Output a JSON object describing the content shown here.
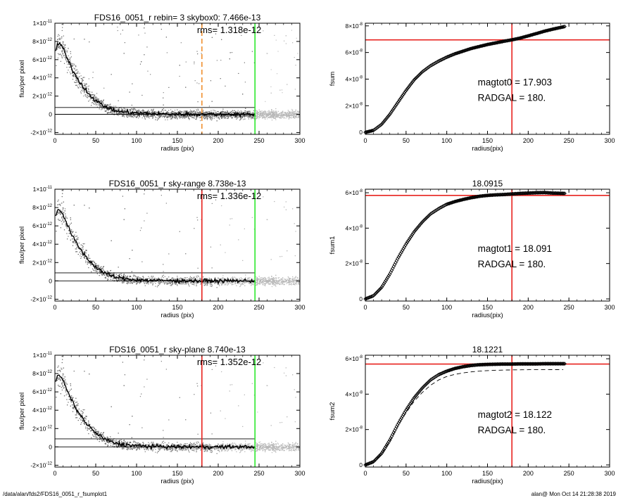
{
  "footer": {
    "path": "/data/alan/fds2/FDS16_0051_r_fsumplot1",
    "stamp": "alan@  Mon Oct 14 21:28:38 2019"
  },
  "colors": {
    "red": "#e8231f",
    "green": "#2ee82e",
    "orange": "#f09030",
    "dark_points": "#6e6e6e",
    "light_points": "#b8b8b8",
    "curve": "#000000"
  },
  "chart_data": [
    {
      "id": "profile1",
      "type": "scatter",
      "title": "FDS16_0051_r rebin= 3    skybox0:  7.466e-13",
      "annotation": "rms= 1.318e-12",
      "xlabel": "radius (pix)",
      "ylabel": "flux/per pixel",
      "xlim": [
        0,
        300
      ],
      "ylim": [
        -2.2e-12,
        1e-11
      ],
      "xticks": [
        0,
        50,
        100,
        150,
        200,
        250,
        300
      ],
      "yticks": [
        {
          "v": 1e-11,
          "m": "1×10",
          "e": "-11"
        },
        {
          "v": 8e-12,
          "m": "8×10",
          "e": "-12"
        },
        {
          "v": 6e-12,
          "m": "6×10",
          "e": "-12"
        },
        {
          "v": 4e-12,
          "m": "4×10",
          "e": "-12"
        },
        {
          "v": 2e-12,
          "m": "2×10",
          "e": "-12"
        },
        {
          "v": 0,
          "m": "0",
          "e": ""
        },
        {
          "v": -2e-12,
          "m": "-2×10",
          "e": "-12"
        }
      ],
      "hlines": [
        0,
        7.466e-13
      ],
      "vlines": [
        {
          "x": 180,
          "color": "orange",
          "dash": true
        },
        {
          "x": 245,
          "color": "green",
          "dash": false
        }
      ],
      "profile": {
        "r": [
          0,
          3,
          6,
          9,
          12,
          15,
          20,
          25,
          30,
          40,
          50,
          60,
          70,
          80,
          90,
          100,
          120,
          150,
          180,
          200,
          220,
          245
        ],
        "f": [
          6.7e-12,
          7.6e-12,
          7.8e-12,
          7.4e-12,
          6.8e-12,
          6.1e-12,
          5.2e-12,
          4.3e-12,
          3.6e-12,
          2.4e-12,
          1.5e-12,
          9e-13,
          5e-13,
          3e-13,
          2e-13,
          1.3e-13,
          5e-14,
          1e-14,
          0,
          0,
          0,
          0
        ]
      },
      "scatter_style": "split"
    },
    {
      "id": "growth1",
      "type": "line",
      "title": "",
      "xlabel": "radius(pix)",
      "ylabel": "fsum",
      "xlim": [
        0,
        300
      ],
      "ylim": [
        -1.5e-09,
        8.2e-08
      ],
      "xticks": [
        0,
        50,
        100,
        150,
        200,
        250,
        300
      ],
      "yticks": [
        {
          "v": 0,
          "m": "0",
          "e": ""
        },
        {
          "v": 2e-08,
          "m": "2×10",
          "e": "-8"
        },
        {
          "v": 4e-08,
          "m": "4×10",
          "e": "-8"
        },
        {
          "v": 6e-08,
          "m": "6×10",
          "e": "-8"
        },
        {
          "v": 8e-08,
          "m": "8×10",
          "e": "-8"
        }
      ],
      "vline": 180,
      "hline": 6.95e-08,
      "curve": {
        "r": [
          0,
          10,
          20,
          30,
          40,
          50,
          60,
          70,
          80,
          90,
          100,
          110,
          120,
          130,
          140,
          150,
          160,
          170,
          180,
          190,
          200,
          210,
          220,
          230,
          245
        ],
        "v": [
          0,
          1.5e-09,
          6e-09,
          1.35e-08,
          2.25e-08,
          3.15e-08,
          3.95e-08,
          4.55e-08,
          5e-08,
          5.35e-08,
          5.65e-08,
          5.9e-08,
          6.1e-08,
          6.3e-08,
          6.45e-08,
          6.6e-08,
          6.72e-08,
          6.84e-08,
          6.95e-08,
          7.08e-08,
          7.25e-08,
          7.42e-08,
          7.6e-08,
          7.75e-08,
          7.95e-08
        ]
      },
      "labels": [
        "magtot0 =  17.903",
        "RADGAL =    180."
      ]
    },
    {
      "id": "profile2",
      "type": "scatter",
      "title": "FDS16_0051_r sky-range  8.738e-13",
      "annotation": "rms= 1.336e-12",
      "xlabel": "radius (pix)",
      "ylabel": "flux/per pixel",
      "xlim": [
        0,
        300
      ],
      "ylim": [
        -2.2e-12,
        1e-11
      ],
      "xticks": [
        0,
        50,
        100,
        150,
        200,
        250,
        300
      ],
      "yticks": [
        {
          "v": 1e-11,
          "m": "1×10",
          "e": "-11"
        },
        {
          "v": 8e-12,
          "m": "8×10",
          "e": "-12"
        },
        {
          "v": 6e-12,
          "m": "6×10",
          "e": "-12"
        },
        {
          "v": 4e-12,
          "m": "4×10",
          "e": "-12"
        },
        {
          "v": 2e-12,
          "m": "2×10",
          "e": "-12"
        },
        {
          "v": 0,
          "m": "0",
          "e": ""
        },
        {
          "v": -2e-12,
          "m": "-2×10",
          "e": "-12"
        }
      ],
      "hlines": [
        0,
        8.738e-13
      ],
      "vlines": [
        {
          "x": 180,
          "color": "red",
          "dash": false
        },
        {
          "x": 245,
          "color": "green",
          "dash": false
        }
      ],
      "profile": {
        "r": [
          0,
          3,
          6,
          9,
          12,
          15,
          20,
          25,
          30,
          40,
          50,
          60,
          70,
          80,
          90,
          100,
          120,
          150,
          180,
          200,
          220,
          245
        ],
        "f": [
          6.8e-12,
          7.7e-12,
          7.8e-12,
          7.4e-12,
          6.8e-12,
          6.1e-12,
          5.2e-12,
          4.3e-12,
          3.6e-12,
          2.4e-12,
          1.5e-12,
          9e-13,
          5e-13,
          3e-13,
          2e-13,
          1.3e-13,
          5e-14,
          1e-14,
          0,
          0,
          0,
          0
        ]
      },
      "scatter_style": "grey"
    },
    {
      "id": "growth2",
      "type": "line",
      "title": "18.0915",
      "xlabel": "radius(pix)",
      "ylabel": "fsum1",
      "xlim": [
        0,
        300
      ],
      "ylim": [
        -1.2e-09,
        6.2e-08
      ],
      "xticks": [
        0,
        50,
        100,
        150,
        200,
        250,
        300
      ],
      "yticks": [
        {
          "v": 0,
          "m": "0",
          "e": ""
        },
        {
          "v": 2e-08,
          "m": "2×10",
          "e": "-8"
        },
        {
          "v": 4e-08,
          "m": "4×10",
          "e": "-8"
        },
        {
          "v": 6e-08,
          "m": "6×10",
          "e": "-8"
        }
      ],
      "vline": 180,
      "hline": 5.85e-08,
      "curve": {
        "r": [
          0,
          10,
          20,
          30,
          40,
          50,
          60,
          70,
          80,
          90,
          100,
          110,
          120,
          130,
          140,
          150,
          160,
          170,
          180,
          190,
          200,
          210,
          220,
          230,
          245
        ],
        "v": [
          0,
          1.8e-09,
          6.5e-09,
          1.4e-08,
          2.3e-08,
          3.1e-08,
          3.8e-08,
          4.35e-08,
          4.8e-08,
          5.1e-08,
          5.35e-08,
          5.5e-08,
          5.62e-08,
          5.72e-08,
          5.8e-08,
          5.85e-08,
          5.88e-08,
          5.9e-08,
          5.93e-08,
          5.96e-08,
          5.98e-08,
          6e-08,
          6.01e-08,
          5.98e-08,
          5.96e-08
        ]
      },
      "labels": [
        "magtot1 =  18.091",
        "RADGAL =    180."
      ]
    },
    {
      "id": "profile3",
      "type": "scatter",
      "title": "FDS16_0051_r sky-plane  8.740e-13",
      "annotation": "rms= 1.352e-12",
      "xlabel": "radius (pix)",
      "ylabel": "flux/per pixel",
      "xlim": [
        0,
        300
      ],
      "ylim": [
        -2.2e-12,
        1e-11
      ],
      "xticks": [
        0,
        50,
        100,
        150,
        200,
        250,
        300
      ],
      "yticks": [
        {
          "v": 1e-11,
          "m": "1×10",
          "e": "-11"
        },
        {
          "v": 8e-12,
          "m": "8×10",
          "e": "-12"
        },
        {
          "v": 6e-12,
          "m": "6×10",
          "e": "-12"
        },
        {
          "v": 4e-12,
          "m": "4×10",
          "e": "-12"
        },
        {
          "v": 2e-12,
          "m": "2×10",
          "e": "-12"
        },
        {
          "v": 0,
          "m": "0",
          "e": ""
        },
        {
          "v": -2e-12,
          "m": "-2×10",
          "e": "-12"
        }
      ],
      "hlines": [
        0,
        8.74e-13
      ],
      "vlines": [
        {
          "x": 180,
          "color": "red",
          "dash": false
        },
        {
          "x": 245,
          "color": "green",
          "dash": false
        }
      ],
      "profile": {
        "r": [
          0,
          3,
          6,
          9,
          12,
          15,
          20,
          25,
          30,
          40,
          50,
          60,
          70,
          80,
          90,
          100,
          120,
          150,
          180,
          200,
          220,
          245
        ],
        "f": [
          6.8e-12,
          7.7e-12,
          7.8e-12,
          7.4e-12,
          6.8e-12,
          6.1e-12,
          5.2e-12,
          4.3e-12,
          3.6e-12,
          2.4e-12,
          1.5e-12,
          9e-13,
          5e-13,
          3e-13,
          2e-13,
          1.3e-13,
          5e-14,
          1e-14,
          0,
          0,
          0,
          0
        ]
      },
      "scatter_style": "grey"
    },
    {
      "id": "growth3",
      "type": "line",
      "title": "18.1221",
      "xlabel": "radius(pix)",
      "ylabel": "fsum2",
      "xlim": [
        0,
        300
      ],
      "ylim": [
        -1.2e-09,
        6.2e-08
      ],
      "xticks": [
        0,
        50,
        100,
        150,
        200,
        250,
        300
      ],
      "yticks": [
        {
          "v": 0,
          "m": "0",
          "e": ""
        },
        {
          "v": 2e-08,
          "m": "2×10",
          "e": "-8"
        },
        {
          "v": 4e-08,
          "m": "4×10",
          "e": "-8"
        },
        {
          "v": 6e-08,
          "m": "6×10",
          "e": "-8"
        }
      ],
      "vline": 180,
      "hline": 5.7e-08,
      "curve": {
        "r": [
          0,
          10,
          20,
          30,
          40,
          50,
          60,
          70,
          80,
          90,
          100,
          110,
          120,
          130,
          140,
          150,
          160,
          170,
          180,
          190,
          200,
          210,
          220,
          230,
          245
        ],
        "v": [
          0,
          1.8e-09,
          6.5e-09,
          1.4e-08,
          2.3e-08,
          3.1e-08,
          3.8e-08,
          4.35e-08,
          4.8e-08,
          5.1e-08,
          5.3e-08,
          5.45e-08,
          5.55e-08,
          5.62e-08,
          5.66e-08,
          5.68e-08,
          5.69e-08,
          5.7e-08,
          5.7e-08,
          5.71e-08,
          5.71e-08,
          5.71e-08,
          5.72e-08,
          5.72e-08,
          5.72e-08
        ]
      },
      "dashed": {
        "r": [
          0,
          10,
          20,
          30,
          40,
          50,
          60,
          70,
          80,
          90,
          100,
          110,
          120,
          130,
          140,
          150,
          160,
          170,
          180,
          200,
          220,
          245
        ],
        "v": [
          0,
          1.7e-09,
          6.2e-09,
          1.35e-08,
          2.2e-08,
          2.95e-08,
          3.6e-08,
          4.1e-08,
          4.5e-08,
          4.8e-08,
          5e-08,
          5.12e-08,
          5.2e-08,
          5.26e-08,
          5.3e-08,
          5.33e-08,
          5.35e-08,
          5.36e-08,
          5.37e-08,
          5.38e-08,
          5.38e-08,
          5.39e-08
        ]
      },
      "labels": [
        "magtot2 =  18.122",
        "RADGAL =    180."
      ]
    }
  ]
}
